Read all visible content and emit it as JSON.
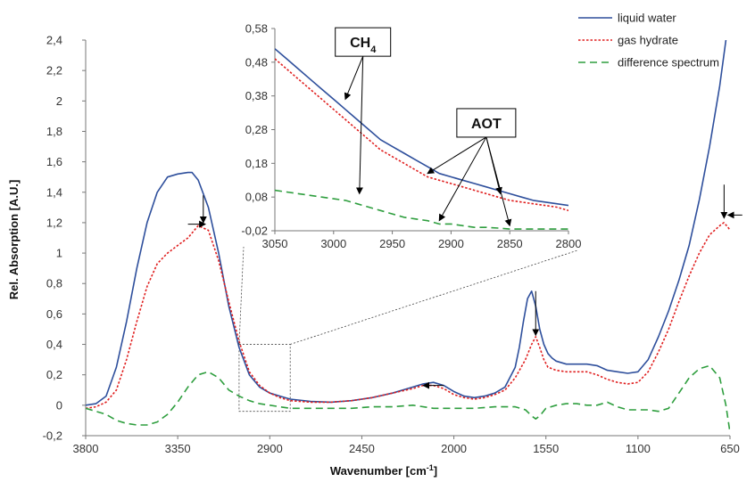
{
  "chart_data": [
    {
      "type": "line",
      "title": "",
      "xlabel": "Wavenumber [cm",
      "xlabel_sup": "-1",
      "xlabel_tail": "]",
      "ylabel": "Rel. Absorption [A.U.]",
      "xlim": [
        3800,
        650
      ],
      "ylim": [
        -0.2,
        2.4
      ],
      "x_ticks": [
        3800,
        3350,
        2900,
        2450,
        2000,
        1550,
        1100,
        650
      ],
      "y_ticks": [
        -0.2,
        0,
        0.2,
        0.4,
        0.6,
        0.8,
        1,
        1.2,
        1.4,
        1.6,
        1.8,
        2,
        2.2,
        2.4
      ],
      "y_tick_labels": [
        "-0,2",
        "0",
        "0,2",
        "0,4",
        "0,6",
        "0,8",
        "1",
        "1,2",
        "1,4",
        "1,6",
        "1,8",
        "2",
        "2,2",
        "2,4"
      ],
      "legend_position": "top-right",
      "series": [
        {
          "name": "liquid water",
          "color": "#2e4f9c",
          "dash": "solid",
          "x": [
            3800,
            3750,
            3700,
            3650,
            3600,
            3550,
            3500,
            3450,
            3400,
            3350,
            3300,
            3280,
            3250,
            3200,
            3150,
            3100,
            3050,
            3000,
            2950,
            2900,
            2850,
            2800,
            2700,
            2600,
            2500,
            2400,
            2300,
            2200,
            2150,
            2100,
            2050,
            2000,
            1950,
            1900,
            1850,
            1800,
            1750,
            1700,
            1680,
            1660,
            1640,
            1620,
            1600,
            1580,
            1560,
            1540,
            1520,
            1500,
            1450,
            1400,
            1350,
            1300,
            1250,
            1200,
            1150,
            1100,
            1050,
            1000,
            950,
            900,
            850,
            800,
            750,
            700,
            670,
            650
          ],
          "y": [
            0,
            0.01,
            0.06,
            0.25,
            0.55,
            0.9,
            1.2,
            1.4,
            1.5,
            1.52,
            1.53,
            1.53,
            1.48,
            1.3,
            1.0,
            0.65,
            0.38,
            0.2,
            0.12,
            0.08,
            0.06,
            0.04,
            0.025,
            0.02,
            0.03,
            0.05,
            0.08,
            0.12,
            0.14,
            0.15,
            0.13,
            0.09,
            0.06,
            0.05,
            0.06,
            0.08,
            0.12,
            0.25,
            0.38,
            0.55,
            0.7,
            0.75,
            0.65,
            0.5,
            0.4,
            0.34,
            0.31,
            0.29,
            0.27,
            0.27,
            0.27,
            0.26,
            0.23,
            0.22,
            0.21,
            0.22,
            0.3,
            0.45,
            0.62,
            0.82,
            1.05,
            1.35,
            1.7,
            2.1,
            2.4,
            2.6
          ]
        },
        {
          "name": "gas hydrate",
          "color": "#e02020",
          "dash": "dotted",
          "x": [
            3800,
            3750,
            3700,
            3650,
            3600,
            3550,
            3500,
            3450,
            3400,
            3350,
            3300,
            3250,
            3200,
            3150,
            3100,
            3050,
            3000,
            2950,
            2900,
            2850,
            2800,
            2700,
            2600,
            2500,
            2400,
            2300,
            2200,
            2150,
            2100,
            2050,
            2000,
            1950,
            1900,
            1850,
            1800,
            1750,
            1700,
            1650,
            1620,
            1600,
            1580,
            1560,
            1540,
            1520,
            1500,
            1450,
            1400,
            1350,
            1300,
            1250,
            1200,
            1150,
            1100,
            1050,
            1000,
            950,
            900,
            850,
            800,
            750,
            700,
            680,
            660,
            650
          ],
          "y": [
            -0.02,
            -0.01,
            0.02,
            0.1,
            0.3,
            0.55,
            0.78,
            0.93,
            1.0,
            1.05,
            1.1,
            1.18,
            1.15,
            0.95,
            0.68,
            0.42,
            0.22,
            0.13,
            0.08,
            0.05,
            0.03,
            0.02,
            0.02,
            0.03,
            0.05,
            0.08,
            0.11,
            0.13,
            0.13,
            0.11,
            0.07,
            0.05,
            0.04,
            0.05,
            0.07,
            0.1,
            0.18,
            0.3,
            0.4,
            0.45,
            0.38,
            0.3,
            0.25,
            0.24,
            0.23,
            0.22,
            0.22,
            0.22,
            0.2,
            0.17,
            0.15,
            0.14,
            0.15,
            0.22,
            0.35,
            0.5,
            0.68,
            0.85,
            1.0,
            1.12,
            1.18,
            1.2,
            1.17,
            1.15
          ]
        },
        {
          "name": "difference spectrum",
          "color": "#2e9e3e",
          "dash": "dashed",
          "x": [
            3800,
            3750,
            3700,
            3650,
            3600,
            3550,
            3500,
            3450,
            3400,
            3350,
            3300,
            3250,
            3200,
            3150,
            3100,
            3050,
            3000,
            2950,
            2900,
            2850,
            2800,
            2700,
            2600,
            2500,
            2400,
            2300,
            2200,
            2100,
            2000,
            1900,
            1800,
            1700,
            1650,
            1620,
            1600,
            1580,
            1550,
            1500,
            1450,
            1400,
            1350,
            1300,
            1250,
            1200,
            1150,
            1100,
            1050,
            1000,
            950,
            900,
            850,
            800,
            750,
            700,
            670,
            650
          ],
          "y": [
            -0.02,
            -0.04,
            -0.06,
            -0.1,
            -0.12,
            -0.13,
            -0.13,
            -0.11,
            -0.06,
            0.02,
            0.12,
            0.2,
            0.22,
            0.18,
            0.1,
            0.06,
            0.03,
            0.01,
            0.0,
            -0.01,
            -0.02,
            -0.02,
            -0.02,
            -0.02,
            -0.01,
            -0.01,
            0.0,
            -0.02,
            -0.02,
            -0.02,
            -0.01,
            -0.01,
            -0.03,
            -0.07,
            -0.09,
            -0.07,
            -0.02,
            0.0,
            0.01,
            0.01,
            0.0,
            0.0,
            0.02,
            -0.01,
            -0.03,
            -0.03,
            -0.03,
            -0.04,
            -0.02,
            0.08,
            0.18,
            0.24,
            0.26,
            0.18,
            0.0,
            -0.18
          ]
        }
      ],
      "annotations": {
        "main_arrows": [
          {
            "from": [
              3300,
              1.19
            ],
            "to": [
              3215,
              1.19
            ]
          },
          {
            "from": [
              3225,
              1.38
            ],
            "to": [
              3225,
              1.2
            ]
          },
          {
            "from": [
              1600,
              0.75
            ],
            "to": [
              1600,
              0.46
            ]
          },
          {
            "from": [
              2050,
              0.13
            ],
            "to": [
              2150,
              0.13
            ]
          },
          {
            "from": [
              590,
              1.25
            ],
            "to": [
              660,
              1.25
            ]
          },
          {
            "from": [
              679,
              1.45
            ],
            "to": [
              679,
              1.23
            ]
          }
        ],
        "zoom_box": {
          "x": [
            3050,
            2800
          ],
          "y": [
            -0.04,
            0.4
          ]
        }
      }
    },
    {
      "type": "line",
      "role": "inset",
      "title": "",
      "xlim": [
        3050,
        2800
      ],
      "ylim": [
        -0.02,
        0.58
      ],
      "x_ticks": [
        3050,
        3000,
        2950,
        2900,
        2850,
        2800
      ],
      "y_ticks": [
        -0.02,
        0.08,
        0.18,
        0.28,
        0.38,
        0.48,
        0.58
      ],
      "y_tick_labels": [
        "-0,02",
        "0,08",
        "0,18",
        "0,28",
        "0,38",
        "0,48",
        "0,58"
      ],
      "series": [
        {
          "name": "liquid water",
          "color": "#2e4f9c",
          "dash": "solid",
          "x": [
            3050,
            3040,
            3030,
            3020,
            3010,
            3000,
            2990,
            2980,
            2970,
            2960,
            2950,
            2940,
            2930,
            2920,
            2910,
            2900,
            2890,
            2880,
            2870,
            2860,
            2850,
            2840,
            2830,
            2820,
            2810,
            2800
          ],
          "y": [
            0.52,
            0.49,
            0.46,
            0.43,
            0.4,
            0.37,
            0.34,
            0.31,
            0.28,
            0.25,
            0.23,
            0.21,
            0.19,
            0.17,
            0.15,
            0.14,
            0.13,
            0.12,
            0.11,
            0.1,
            0.09,
            0.08,
            0.07,
            0.065,
            0.06,
            0.055
          ]
        },
        {
          "name": "gas hydrate",
          "color": "#e02020",
          "dash": "dotted",
          "x": [
            3050,
            3040,
            3030,
            3020,
            3010,
            3000,
            2990,
            2980,
            2970,
            2960,
            2950,
            2940,
            2930,
            2920,
            2910,
            2900,
            2890,
            2880,
            2870,
            2860,
            2850,
            2840,
            2830,
            2820,
            2810,
            2800
          ],
          "y": [
            0.49,
            0.46,
            0.43,
            0.4,
            0.37,
            0.34,
            0.31,
            0.28,
            0.25,
            0.22,
            0.2,
            0.18,
            0.16,
            0.14,
            0.13,
            0.12,
            0.11,
            0.1,
            0.09,
            0.08,
            0.07,
            0.065,
            0.06,
            0.055,
            0.05,
            0.04
          ]
        },
        {
          "name": "difference spectrum",
          "color": "#2e9e3e",
          "dash": "dashed",
          "x": [
            3050,
            3040,
            3030,
            3020,
            3010,
            3000,
            2990,
            2980,
            2970,
            2960,
            2950,
            2940,
            2930,
            2920,
            2910,
            2900,
            2890,
            2880,
            2870,
            2860,
            2850,
            2840,
            2830,
            2820,
            2810,
            2800
          ],
          "y": [
            0.1,
            0.095,
            0.09,
            0.085,
            0.08,
            0.075,
            0.07,
            0.06,
            0.05,
            0.04,
            0.03,
            0.02,
            0.015,
            0.01,
            0.0,
            0.0,
            -0.005,
            -0.01,
            -0.01,
            -0.012,
            -0.015,
            -0.015,
            -0.015,
            -0.015,
            -0.015,
            -0.015
          ]
        }
      ],
      "callouts": [
        {
          "label": "CH",
          "sub": "4",
          "anchor": [
            2975,
            0.54
          ],
          "targets": [
            [
              2990,
              0.37
            ],
            [
              2978,
              0.09
            ]
          ]
        },
        {
          "label": "AOT",
          "sub": "",
          "anchor": [
            2870,
            0.3
          ],
          "targets": [
            [
              2920,
              0.15
            ],
            [
              2910,
              0.01
            ],
            [
              2858,
              0.09
            ],
            [
              2850,
              -0.005
            ]
          ]
        }
      ]
    }
  ]
}
